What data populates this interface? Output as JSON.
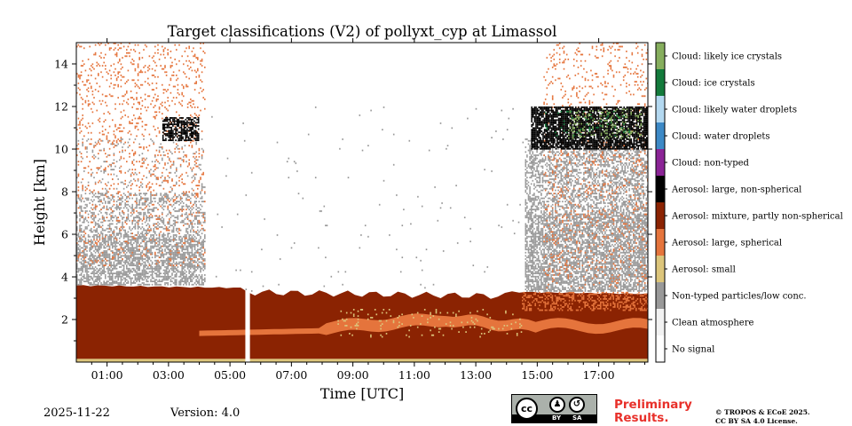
{
  "chart_data": {
    "type": "heatmap",
    "title": "Target classifications (V2) of pollyxt_cyp at Limassol",
    "xlabel": "Time [UTC]",
    "ylabel": "Height [km]",
    "xlim": [
      0,
      18.6
    ],
    "ylim": [
      0,
      15
    ],
    "x_ticks": [
      {
        "value": 1,
        "label": "01:00"
      },
      {
        "value": 3,
        "label": "03:00"
      },
      {
        "value": 5,
        "label": "05:00"
      },
      {
        "value": 7,
        "label": "07:00"
      },
      {
        "value": 9,
        "label": "09:00"
      },
      {
        "value": 11,
        "label": "11:00"
      },
      {
        "value": 13,
        "label": "13:00"
      },
      {
        "value": 15,
        "label": "15:00"
      },
      {
        "value": 17,
        "label": "17:00"
      }
    ],
    "y_ticks": [
      {
        "value": 2,
        "label": "2"
      },
      {
        "value": 4,
        "label": "4"
      },
      {
        "value": 6,
        "label": "6"
      },
      {
        "value": 8,
        "label": "8"
      },
      {
        "value": 10,
        "label": "10"
      },
      {
        "value": 12,
        "label": "12"
      },
      {
        "value": 14,
        "label": "14"
      }
    ],
    "classes": [
      {
        "id": 0,
        "label": "No signal",
        "color": "#ffffff"
      },
      {
        "id": 1,
        "label": "Clean atmosphere",
        "color": "#f2f2f2"
      },
      {
        "id": 2,
        "label": "Non-typed particles/low conc.",
        "color": "#999999"
      },
      {
        "id": 3,
        "label": "Aerosol: small",
        "color": "#dcc57b"
      },
      {
        "id": 4,
        "label": "Aerosol: large, spherical",
        "color": "#e5743c"
      },
      {
        "id": 5,
        "label": "Aerosol: mixture, partly non-spherical",
        "color": "#8b2302"
      },
      {
        "id": 6,
        "label": "Aerosol: large, non-spherical",
        "color": "#000000"
      },
      {
        "id": 7,
        "label": "Cloud: non-typed",
        "color": "#8b2496"
      },
      {
        "id": 8,
        "label": "Cloud: water droplets",
        "color": "#3d89c6"
      },
      {
        "id": 9,
        "label": "Cloud: likely water droplets",
        "color": "#b3d8f0"
      },
      {
        "id": 10,
        "label": "Cloud: ice crystals",
        "color": "#137a3b"
      },
      {
        "id": 11,
        "label": "Cloud: likely ice crystals",
        "color": "#86ae5d"
      }
    ],
    "regions": [
      {
        "name": "boundary-layer",
        "class": 5,
        "x_start": 0,
        "x_end": 18.6,
        "y_bottom": 0.15,
        "y_top_left": 3.6,
        "y_top_right": 3.2
      },
      {
        "name": "data-gap",
        "class": 0,
        "x_start": 5.5,
        "x_end": 5.65
      },
      {
        "name": "elevated-large-spherical-layer",
        "class": 4,
        "x_start": 4.0,
        "x_end": 18.6,
        "y_range": [
          1.1,
          2.3
        ]
      },
      {
        "name": "non-typed-night",
        "class": 2,
        "x_start": 0,
        "x_end": 4.2,
        "y_range": [
          3.6,
          7.5
        ]
      },
      {
        "name": "non-typed-evening",
        "class": 2,
        "x_start": 14.6,
        "x_end": 18.6,
        "y_range": [
          3.3,
          10.5
        ]
      },
      {
        "name": "ice-cloud-night",
        "class": 6,
        "x_start": 2.8,
        "x_end": 4.0,
        "y_range": [
          10.4,
          11.5
        ]
      },
      {
        "name": "ice-cloud-evening",
        "class": 6,
        "x_start": 14.8,
        "x_end": 18.6,
        "y_range": [
          10.0,
          12.0
        ]
      }
    ]
  },
  "footer": {
    "date": "2025-11-22",
    "version": "Version: 4.0",
    "preliminary_line1": "Preliminary",
    "preliminary_line2": "Results.",
    "copyright_line1": "© TROPOS & ECoE 2025.",
    "copyright_line2": "CC BY SA 4.0 License.",
    "badge_by": "BY",
    "badge_sa": "SA",
    "badge_cc": "cc"
  }
}
